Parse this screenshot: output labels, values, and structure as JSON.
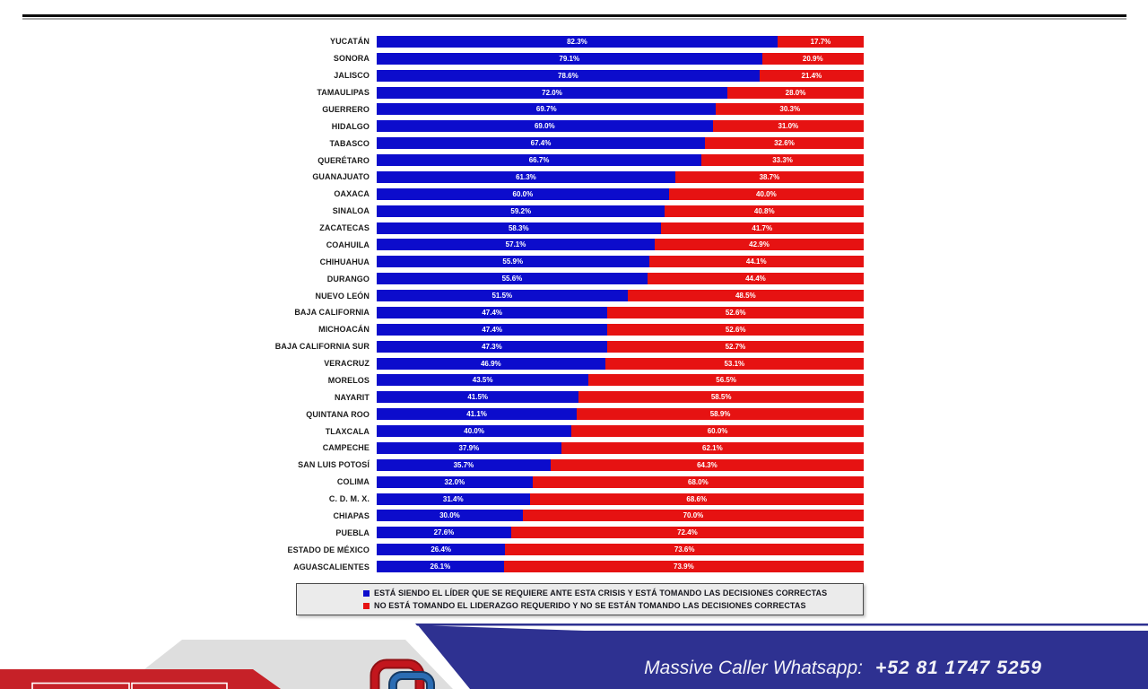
{
  "chart_data": {
    "type": "bar",
    "orientation": "horizontal-stacked",
    "unit": "%",
    "xlim": [
      0,
      100
    ],
    "grid": false,
    "legend_position": "bottom-box",
    "categories": [
      "YUCATÁN",
      "SONORA",
      "JALISCO",
      "TAMAULIPAS",
      "GUERRERO",
      "HIDALGO",
      "TABASCO",
      "QUERÉTARO",
      "GUANAJUATO",
      "OAXACA",
      "SINALOA",
      "ZACATECAS",
      "COAHUILA",
      "CHIHUAHUA",
      "DURANGO",
      "NUEVO LEÓN",
      "BAJA CALIFORNIA",
      "MICHOACÁN",
      "BAJA CALIFORNIA SUR",
      "VERACRUZ",
      "MORELOS",
      "NAYARIT",
      "QUINTANA ROO",
      "TLAXCALA",
      "CAMPECHE",
      "SAN LUIS POTOSÍ",
      "COLIMA",
      "C. D. M. X.",
      "CHIAPAS",
      "PUEBLA",
      "ESTADO DE MÉXICO",
      "AGUASCALIENTES"
    ],
    "series": [
      {
        "name": "ESTÁ SIENDO EL LÍDER QUE SE REQUIERE ANTE ESTA CRISIS Y ESTÁ TOMANDO LAS DECISIONES CORRECTAS",
        "color": "#0c0ccc",
        "values": [
          82.3,
          79.1,
          78.6,
          72.0,
          69.7,
          69.0,
          67.4,
          66.7,
          61.3,
          60.0,
          59.2,
          58.3,
          57.1,
          55.9,
          55.6,
          51.5,
          47.4,
          47.4,
          47.3,
          46.9,
          43.5,
          41.5,
          41.1,
          40.0,
          37.9,
          35.7,
          32.0,
          31.4,
          30.0,
          27.6,
          26.4,
          26.1
        ]
      },
      {
        "name": "NO ESTÁ TOMANDO EL LIDERAZGO REQUERIDO Y NO SE ESTÁN TOMANDO LAS DECISIONES CORRECTAS",
        "color": "#e61212",
        "values": [
          17.7,
          20.9,
          21.4,
          28.0,
          30.3,
          31.0,
          32.6,
          33.3,
          38.7,
          40.0,
          40.8,
          41.7,
          42.9,
          44.1,
          44.4,
          48.5,
          52.6,
          52.6,
          52.7,
          53.1,
          56.5,
          58.5,
          58.9,
          60.0,
          62.1,
          64.3,
          68.0,
          68.6,
          70.0,
          72.4,
          73.6,
          73.9
        ]
      }
    ]
  },
  "legend": {
    "items": [
      {
        "label": "ESTÁ SIENDO EL LÍDER QUE SE REQUIERE ANTE ESTA CRISIS Y ESTÁ TOMANDO LAS DECISIONES CORRECTAS",
        "color": "#0c0ccc"
      },
      {
        "label": "NO ESTÁ TOMANDO EL LIDERAZGO REQUERIDO Y NO SE ESTÁN TOMANDO LAS DECISIONES CORRECTAS",
        "color": "#e61212"
      }
    ]
  },
  "footer": {
    "brand_text": "Massive Caller Whatsapp:",
    "phone": "+52 81 1747 5259",
    "band_color": "#2e3191",
    "stripe_color": "#2e3191",
    "gray_shape_color": "#dedede",
    "red_shape_color": "#c62128",
    "logo": "interlocked-rings-logo"
  }
}
